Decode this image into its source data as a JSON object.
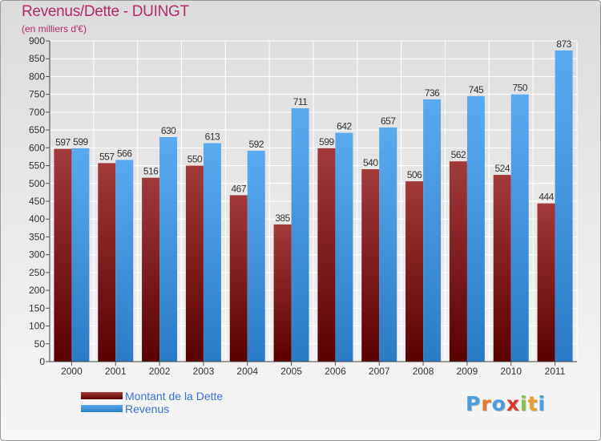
{
  "chart_data": {
    "type": "bar",
    "title": "Revenus/Dette - DUINGT",
    "subtitle": "(en milliers d'€)",
    "categories": [
      "2000",
      "2001",
      "2002",
      "2003",
      "2004",
      "2005",
      "2006",
      "2007",
      "2008",
      "2009",
      "2010",
      "2011"
    ],
    "series": [
      {
        "name": "Montant de la Dette",
        "color": "#7a1010",
        "values": [
          597,
          557,
          516,
          550,
          467,
          385,
          599,
          540,
          506,
          562,
          524,
          444
        ]
      },
      {
        "name": "Revenus",
        "color": "#3f9be6",
        "values": [
          599,
          566,
          630,
          613,
          592,
          711,
          642,
          657,
          736,
          745,
          750,
          873
        ]
      }
    ],
    "ylim": [
      0,
      900
    ],
    "yticks": [
      0,
      50,
      100,
      150,
      200,
      250,
      300,
      350,
      400,
      450,
      500,
      550,
      600,
      650,
      700,
      750,
      800,
      850,
      900
    ],
    "grid": true,
    "legend": "bottom-left"
  },
  "brand": {
    "letters": [
      "P",
      "r",
      "o",
      "x",
      "i",
      "t",
      "i"
    ],
    "colors": [
      "#4a9de0",
      "#e8772e",
      "#4a9de0",
      "#d9372e",
      "#8cbf3f",
      "#e8a02e",
      "#4a9de0"
    ]
  }
}
